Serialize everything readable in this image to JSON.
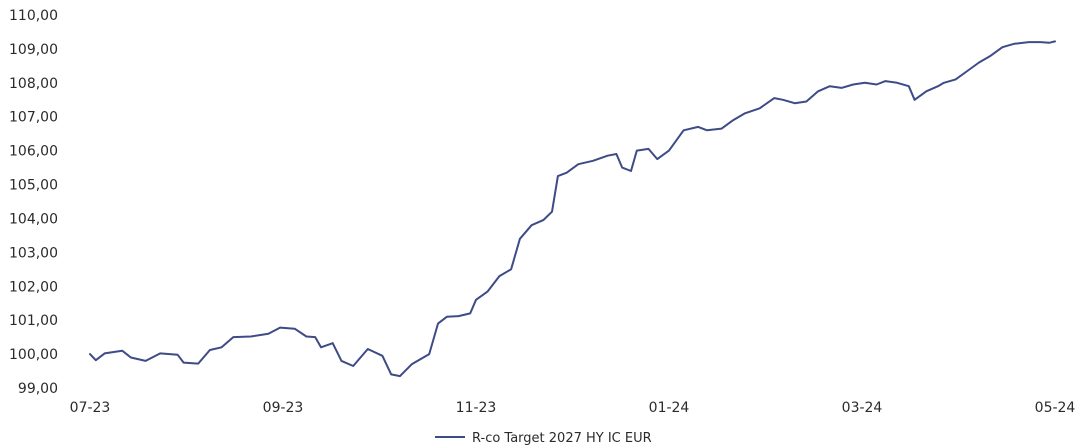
{
  "chart_data": {
    "type": "line",
    "title": "",
    "xlabel": "",
    "ylabel": "",
    "ylim": [
      99,
      110
    ],
    "y_ticks": [
      "99,00",
      "100,00",
      "101,00",
      "102,00",
      "103,00",
      "104,00",
      "105,00",
      "106,00",
      "107,00",
      "108,00",
      "109,00",
      "110,00"
    ],
    "x_ticks": [
      "07-23",
      "09-23",
      "11-23",
      "01-24",
      "03-24",
      "05-24"
    ],
    "grid": false,
    "legend_position": "bottom-center",
    "color": "#3d4b87",
    "series": [
      {
        "name": "R-co Target 2027 HY IC EUR",
        "values": [
          [
            "2023-07-01",
            100.0
          ],
          [
            "2023-07-03",
            99.82
          ],
          [
            "2023-07-06",
            100.02
          ],
          [
            "2023-07-12",
            100.1
          ],
          [
            "2023-07-15",
            99.9
          ],
          [
            "2023-07-20",
            99.8
          ],
          [
            "2023-07-25",
            100.02
          ],
          [
            "2023-07-31",
            99.98
          ],
          [
            "2023-08-02",
            99.75
          ],
          [
            "2023-08-07",
            99.72
          ],
          [
            "2023-08-11",
            100.12
          ],
          [
            "2023-08-15",
            100.2
          ],
          [
            "2023-08-19",
            100.5
          ],
          [
            "2023-08-25",
            100.52
          ],
          [
            "2023-08-31",
            100.6
          ],
          [
            "2023-09-04",
            100.78
          ],
          [
            "2023-09-09",
            100.75
          ],
          [
            "2023-09-13",
            100.52
          ],
          [
            "2023-09-16",
            100.5
          ],
          [
            "2023-09-18",
            100.2
          ],
          [
            "2023-09-22",
            100.32
          ],
          [
            "2023-09-25",
            99.8
          ],
          [
            "2023-09-29",
            99.65
          ],
          [
            "2023-10-04",
            100.15
          ],
          [
            "2023-10-09",
            99.95
          ],
          [
            "2023-10-12",
            99.4
          ],
          [
            "2023-10-15",
            99.35
          ],
          [
            "2023-10-19",
            99.7
          ],
          [
            "2023-10-25",
            100.0
          ],
          [
            "2023-10-28",
            100.9
          ],
          [
            "2023-10-31",
            101.1
          ],
          [
            "2023-11-04",
            101.12
          ],
          [
            "2023-11-08",
            101.2
          ],
          [
            "2023-11-10",
            101.6
          ],
          [
            "2023-11-14",
            101.85
          ],
          [
            "2023-11-18",
            102.3
          ],
          [
            "2023-11-22",
            102.5
          ],
          [
            "2023-11-25",
            103.4
          ],
          [
            "2023-11-29",
            103.8
          ],
          [
            "2023-12-03",
            103.95
          ],
          [
            "2023-12-06",
            104.2
          ],
          [
            "2023-12-08",
            105.25
          ],
          [
            "2023-12-11",
            105.35
          ],
          [
            "2023-12-15",
            105.6
          ],
          [
            "2023-12-20",
            105.7
          ],
          [
            "2023-12-25",
            105.85
          ],
          [
            "2023-12-28",
            105.9
          ],
          [
            "2023-12-30",
            105.5
          ],
          [
            "2024-01-02",
            105.4
          ],
          [
            "2024-01-04",
            106.0
          ],
          [
            "2024-01-08",
            106.05
          ],
          [
            "2024-01-11",
            105.75
          ],
          [
            "2024-01-15",
            106.0
          ],
          [
            "2024-01-20",
            106.6
          ],
          [
            "2024-01-25",
            106.7
          ],
          [
            "2024-01-28",
            106.6
          ],
          [
            "2024-02-02",
            106.65
          ],
          [
            "2024-02-06",
            106.9
          ],
          [
            "2024-02-10",
            107.1
          ],
          [
            "2024-02-15",
            107.25
          ],
          [
            "2024-02-20",
            107.55
          ],
          [
            "2024-02-23",
            107.5
          ],
          [
            "2024-02-27",
            107.4
          ],
          [
            "2024-03-02",
            107.45
          ],
          [
            "2024-03-06",
            107.75
          ],
          [
            "2024-03-10",
            107.9
          ],
          [
            "2024-03-14",
            107.85
          ],
          [
            "2024-03-18",
            107.95
          ],
          [
            "2024-03-22",
            108.0
          ],
          [
            "2024-03-26",
            107.95
          ],
          [
            "2024-03-29",
            108.05
          ],
          [
            "2024-04-02",
            108.0
          ],
          [
            "2024-04-06",
            107.9
          ],
          [
            "2024-04-08",
            107.5
          ],
          [
            "2024-04-12",
            107.75
          ],
          [
            "2024-04-16",
            107.9
          ],
          [
            "2024-04-18",
            108.0
          ],
          [
            "2024-04-22",
            108.1
          ],
          [
            "2024-04-26",
            108.35
          ],
          [
            "2024-04-30",
            108.6
          ],
          [
            "2024-05-04",
            108.8
          ],
          [
            "2024-05-08",
            109.05
          ],
          [
            "2024-05-12",
            109.15
          ],
          [
            "2024-05-17",
            109.2
          ],
          [
            "2024-05-21",
            109.2
          ],
          [
            "2024-05-24",
            109.18
          ],
          [
            "2024-05-26",
            109.22
          ]
        ]
      }
    ]
  }
}
